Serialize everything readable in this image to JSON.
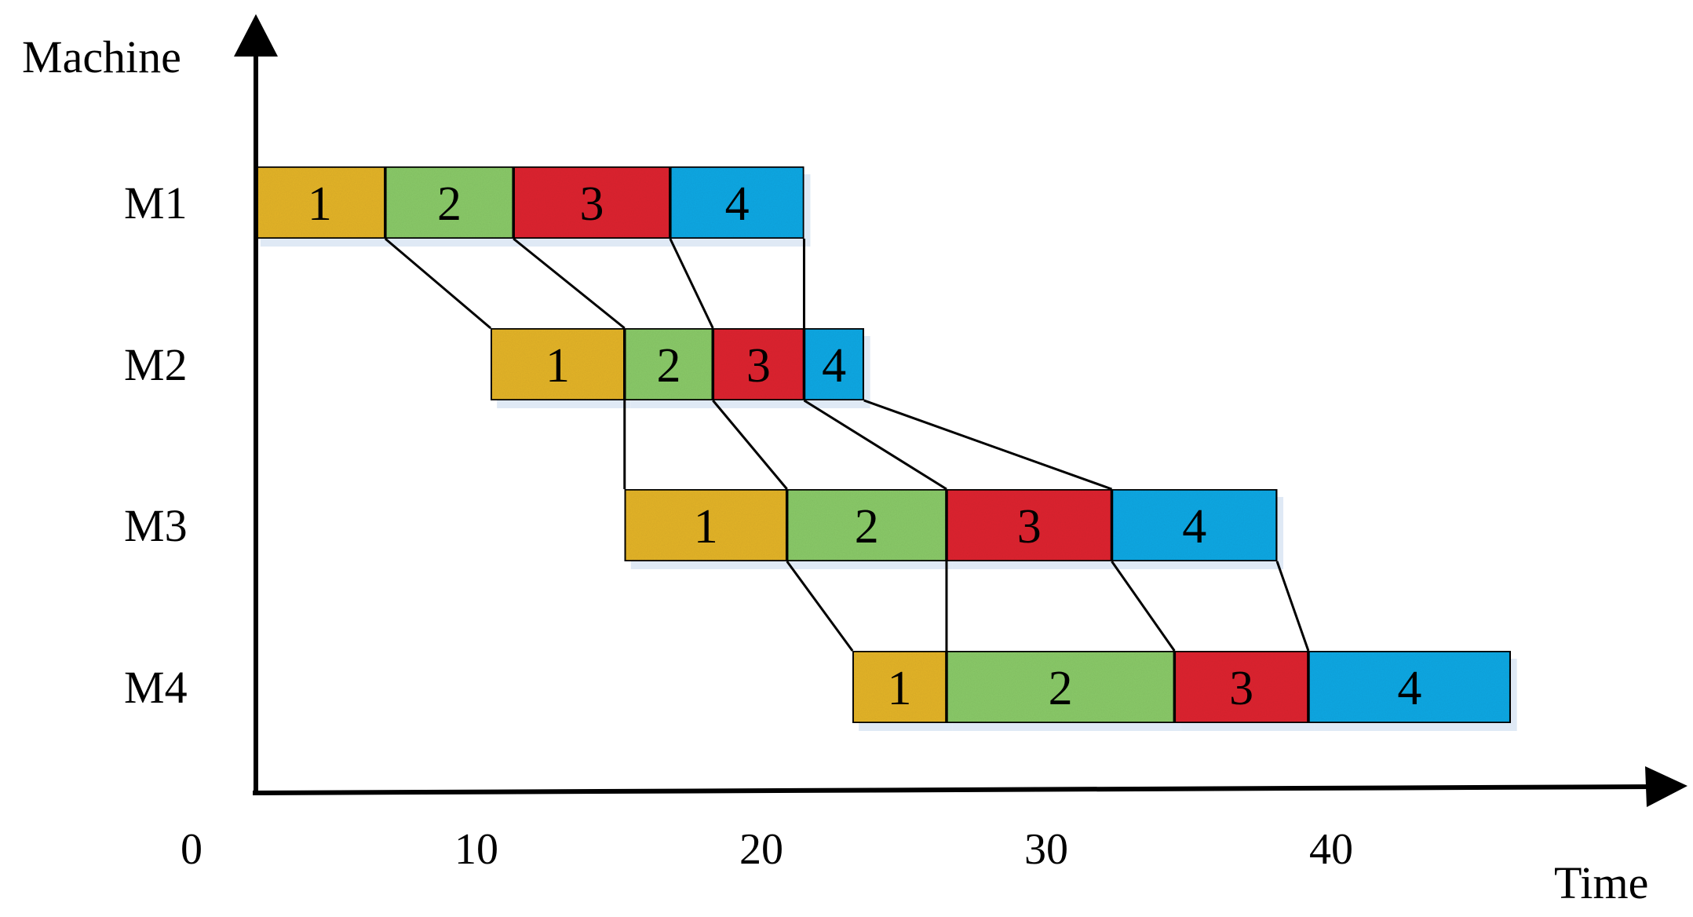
{
  "chart_data": {
    "type": "gantt",
    "ylabel": "Machine",
    "xlabel": "Time",
    "x_ticks": [
      0,
      10,
      20,
      30,
      40
    ],
    "machines": [
      "M1",
      "M2",
      "M3",
      "M4"
    ],
    "colors": {
      "1": "#e6b62a",
      "2": "#8ccc6a",
      "3": "#e02830",
      "4": "#14aae6"
    },
    "operations": [
      {
        "machine": "M1",
        "job": "1",
        "start": 2.2,
        "end": 6.8
      },
      {
        "machine": "M1",
        "job": "2",
        "start": 6.8,
        "end": 11.3
      },
      {
        "machine": "M1",
        "job": "3",
        "start": 11.3,
        "end": 16.8
      },
      {
        "machine": "M1",
        "job": "4",
        "start": 16.8,
        "end": 21.5
      },
      {
        "machine": "M2",
        "job": "1",
        "start": 10.5,
        "end": 15.2
      },
      {
        "machine": "M2",
        "job": "2",
        "start": 15.2,
        "end": 18.3
      },
      {
        "machine": "M2",
        "job": "3",
        "start": 18.3,
        "end": 21.5
      },
      {
        "machine": "M2",
        "job": "4",
        "start": 21.5,
        "end": 23.6
      },
      {
        "machine": "M3",
        "job": "1",
        "start": 15.2,
        "end": 20.9
      },
      {
        "machine": "M3",
        "job": "2",
        "start": 20.9,
        "end": 26.5
      },
      {
        "machine": "M3",
        "job": "3",
        "start": 26.5,
        "end": 32.3
      },
      {
        "machine": "M3",
        "job": "4",
        "start": 32.3,
        "end": 38.1
      },
      {
        "machine": "M4",
        "job": "1",
        "start": 23.2,
        "end": 26.5
      },
      {
        "machine": "M4",
        "job": "2",
        "start": 26.5,
        "end": 34.5
      },
      {
        "machine": "M4",
        "job": "3",
        "start": 34.5,
        "end": 39.2
      },
      {
        "machine": "M4",
        "job": "4",
        "start": 39.2,
        "end": 46.3
      }
    ]
  }
}
